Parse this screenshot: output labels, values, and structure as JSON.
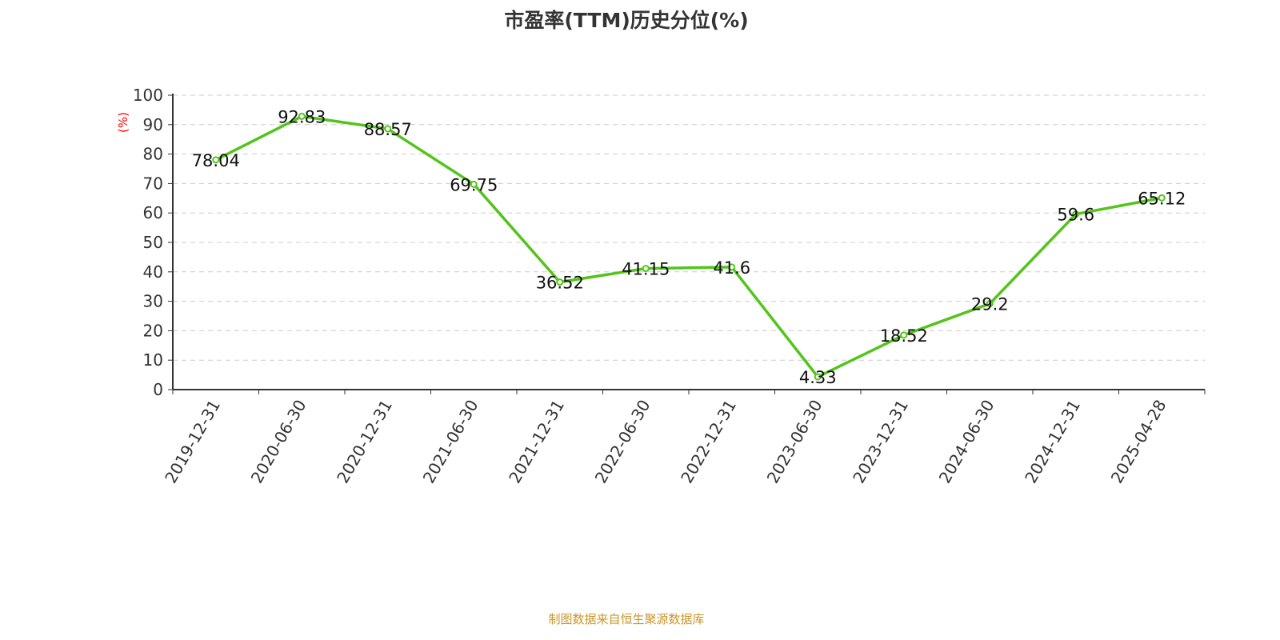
{
  "chart_data": {
    "type": "line",
    "title": "市盈率(TTM)历史分位(%)",
    "ylabel": "(%)",
    "xlabel": "",
    "categories": [
      "2019-12-31",
      "2020-06-30",
      "2020-12-31",
      "2021-06-30",
      "2021-12-31",
      "2022-06-30",
      "2022-12-31",
      "2023-06-30",
      "2023-12-31",
      "2024-06-30",
      "2024-12-31",
      "2025-04-28"
    ],
    "values": [
      78.04,
      92.83,
      88.57,
      69.75,
      36.52,
      41.15,
      41.6,
      4.33,
      18.52,
      29.2,
      59.6,
      65.12
    ],
    "data_labels": [
      "78.04",
      "92.83",
      "88.57",
      "69.75",
      "36.52",
      "41.15",
      "41.6",
      "4.33",
      "18.52",
      "29.2",
      "59.6",
      "65.12"
    ],
    "ylim": [
      0,
      100
    ],
    "yticks": [
      "0",
      "10",
      "20",
      "30",
      "40",
      "50",
      "60",
      "70",
      "80",
      "90",
      "100"
    ],
    "grid": "horizontal dashed",
    "colors": {
      "line": "#52c41a",
      "ylabel": "#ff0000",
      "title": "#333333",
      "footer": "#c8962a"
    }
  },
  "footer": "制图数据来自恒生聚源数据库"
}
